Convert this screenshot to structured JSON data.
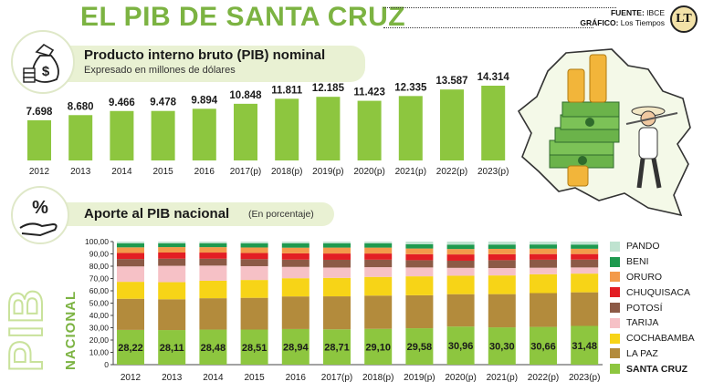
{
  "header": {
    "title": "EL PIB DE SANTA CRUZ",
    "source_label": "FUENTE:",
    "source_value": "IBCE",
    "graphic_label": "GRÁFICO:",
    "graphic_value": "Los Tiempos",
    "logo_text": "LT"
  },
  "side_labels": {
    "pib": "PIB",
    "nacional": "NACIONAL"
  },
  "chart_data": [
    {
      "type": "bar",
      "title": "Producto interno bruto (PIB) nominal",
      "subtitle": "Expresado en millones de dólares",
      "categories": [
        "2012",
        "2013",
        "2014",
        "2015",
        "2016",
        "2017(p)",
        "2018(p)",
        "2019(p)",
        "2020(p)",
        "2021(p)",
        "2022(p)",
        "2023(p)"
      ],
      "values": [
        7698,
        8680,
        9466,
        9478,
        9894,
        10848,
        11811,
        12185,
        11423,
        12335,
        13587,
        14314
      ],
      "value_labels": [
        "7.698",
        "8.680",
        "9.466",
        "9.478",
        "9.894",
        "10.848",
        "11.811",
        "12.185",
        "11.423",
        "12.335",
        "13.587",
        "14.314"
      ],
      "color": "#8dc63f",
      "grid": false
    },
    {
      "type": "bar",
      "stacked": true,
      "title": "Aporte al PIB nacional",
      "subtitle": "(En porcentaje)",
      "ylim": [
        0,
        100
      ],
      "yticks": [
        "0",
        "10,00",
        "20,00",
        "30,00",
        "40,00",
        "50,00",
        "60,00",
        "70,00",
        "80,00",
        "90,00",
        "100,00"
      ],
      "categories": [
        "2012",
        "2013",
        "2014",
        "2015",
        "2016",
        "2017(p)",
        "2018(p)",
        "2019(p)",
        "2020(p)",
        "2021(p)",
        "2022(p)",
        "2023(p)"
      ],
      "legend_position": "right",
      "grid": false,
      "series": [
        {
          "name": "SANTA CRUZ",
          "color": "#8dc63f",
          "values": [
            28.22,
            28.11,
            28.48,
            28.51,
            28.94,
            28.71,
            29.1,
            29.58,
            30.96,
            30.3,
            30.66,
            31.48
          ],
          "value_labels": [
            "28,22",
            "28,11",
            "28,48",
            "28,51",
            "28,94",
            "28,71",
            "29,10",
            "29,58",
            "30,96",
            "30,30",
            "30,66",
            "31,48"
          ]
        },
        {
          "name": "LA PAZ",
          "color": "#b38b3c",
          "values": [
            25.3,
            25.0,
            25.5,
            25.8,
            26.5,
            26.8,
            27.0,
            26.8,
            26.3,
            27.0,
            27.5,
            27.3
          ]
        },
        {
          "name": "COCHABAMBA",
          "color": "#f7d417",
          "values": [
            13.8,
            13.9,
            14.2,
            14.5,
            14.8,
            15.0,
            15.2,
            15.4,
            15.0,
            15.2,
            15.3,
            15.2
          ]
        },
        {
          "name": "TARIJA",
          "color": "#f6c1c6",
          "values": [
            12.5,
            13.3,
            12.3,
            11.2,
            9.2,
            8.4,
            7.9,
            7.2,
            6.4,
            6.0,
            5.3,
            5.0
          ]
        },
        {
          "name": "POTOSÍ",
          "color": "#8c5a46",
          "values": [
            6.0,
            5.8,
            5.6,
            5.7,
            5.9,
            6.3,
            6.1,
            5.9,
            5.8,
            6.4,
            6.5,
            6.4
          ]
        },
        {
          "name": "CHUQUISACA",
          "color": "#e31e24",
          "values": [
            4.9,
            5.0,
            5.0,
            5.0,
            5.1,
            5.1,
            5.0,
            4.9,
            5.1,
            4.8,
            4.6,
            4.5
          ]
        },
        {
          "name": "ORURO",
          "color": "#f39a4a",
          "values": [
            4.6,
            4.4,
            4.4,
            4.5,
            4.6,
            4.8,
            4.8,
            4.6,
            4.4,
            4.4,
            4.4,
            4.3
          ]
        },
        {
          "name": "BENI",
          "color": "#1e9a4f",
          "values": [
            3.2,
            3.1,
            3.2,
            3.3,
            3.5,
            3.5,
            3.5,
            3.4,
            3.6,
            3.5,
            3.4,
            3.4
          ]
        },
        {
          "name": "PANDO",
          "color": "#bfe3d0",
          "values": [
            1.48,
            1.39,
            1.32,
            1.49,
            1.46,
            1.39,
            1.4,
            2.22,
            2.44,
            2.4,
            2.34,
            2.42
          ]
        }
      ]
    }
  ]
}
